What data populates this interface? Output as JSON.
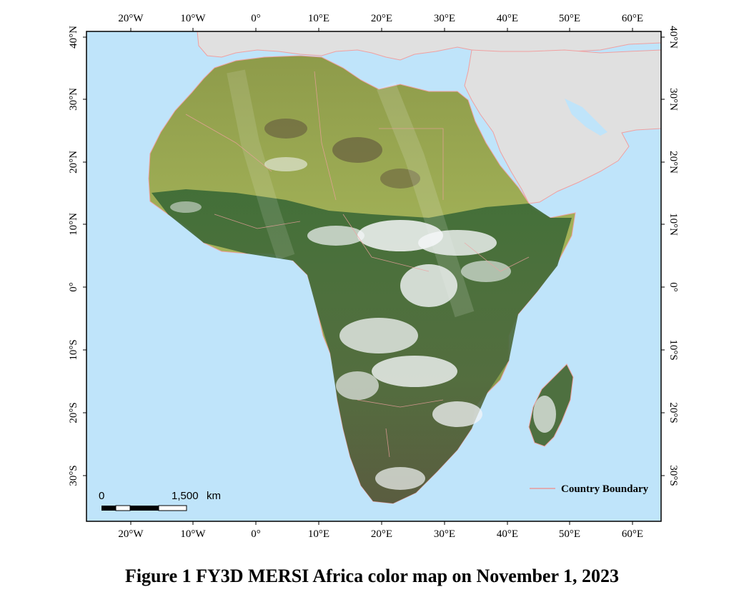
{
  "map": {
    "lon_ticks": [
      "20°W",
      "10°W",
      "0°",
      "10°E",
      "20°E",
      "30°E",
      "40°E",
      "50°E",
      "60°E"
    ],
    "lat_ticks": [
      "40°N",
      "30°N",
      "20°N",
      "10°N",
      "0°",
      "10°S",
      "20°S",
      "30°S"
    ],
    "legend": {
      "label": "Country Boundary",
      "line_color": "#e89a9a"
    },
    "scale_bar": {
      "start_label": "0",
      "end_label": "1,500",
      "unit": "km"
    },
    "colors": {
      "ocean": "#bfe4fa",
      "land_other": "#e0e0e0",
      "boundary": "#f0a0a0",
      "sahara": "#9aac52",
      "vegetation": "#3d6b38",
      "clouds": "#f4f6f8"
    }
  },
  "caption": "Figure 1  FY3D MERSI Africa color map on November 1, 2023"
}
